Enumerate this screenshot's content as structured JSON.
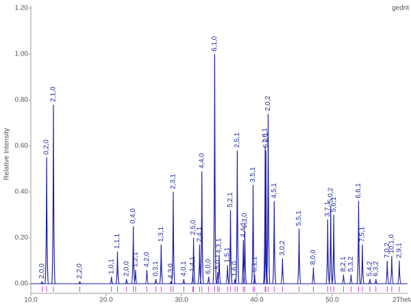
{
  "chart_data": {
    "type": "peaks",
    "subtitle": "gedrit",
    "y_label": "Relative Intensity",
    "x_label": "2Theta",
    "color": "#1a1aa8",
    "tick_color": "#d040d0",
    "xlim": [
      10,
      60
    ],
    "ylim": [
      0,
      1.2
    ],
    "xticks": [
      {
        "value": 10,
        "label": "10.0"
      },
      {
        "value": 20,
        "label": "20.0"
      },
      {
        "value": 30,
        "label": "30.0"
      },
      {
        "value": 40,
        "label": "40.0"
      },
      {
        "value": 50,
        "label": "50.0"
      }
    ],
    "yticks": [
      {
        "value": 0,
        "label": "0.00"
      },
      {
        "value": 0.2,
        "label": "0.20"
      },
      {
        "value": 0.4,
        "label": "0.40"
      },
      {
        "value": 0.6,
        "label": "0.60"
      },
      {
        "value": 0.8,
        "label": "0.80"
      },
      {
        "value": 1,
        "label": "1.00"
      },
      {
        "value": 1.2,
        "label": "1.20"
      }
    ],
    "x": [
      11.5,
      12.1,
      13.0,
      16.5,
      20.7,
      21.5,
      22.7,
      23.6,
      23.9,
      25.4,
      26.6,
      27.3,
      28.6,
      28.9,
      30.3,
      31.5,
      31.6,
      32.4,
      32.7,
      33.6,
      34.4,
      34.8,
      35.0,
      36.1,
      36.5,
      37.1,
      37.4,
      38.2,
      38.4,
      39.5,
      39.7,
      41.1,
      41.2,
      41.5,
      42.3,
      43.4,
      45.6,
      47.5,
      49.4,
      49.8,
      50.2,
      51.5,
      52.5,
      53.5,
      54.0,
      55.0,
      55.8,
      57.3,
      57.9,
      58.9
    ],
    "values": [
      0.01,
      0.55,
      0.78,
      0.01,
      0.03,
      0.14,
      0.02,
      0.25,
      0.06,
      0.06,
      0.02,
      0.17,
      0.01,
      0.4,
      0.02,
      0.04,
      0.2,
      0.17,
      0.49,
      0.03,
      1.0,
      0.05,
      0.12,
      0.08,
      0.32,
      0.02,
      0.58,
      0.19,
      0.23,
      0.43,
      0.04,
      0.6,
      0.58,
      0.74,
      0.36,
      0.11,
      0.24,
      0.07,
      0.28,
      0.34,
      0.3,
      0.04,
      0.04,
      0.36,
      0.17,
      0.02,
      0.02,
      0.1,
      0.12,
      0.1
    ],
    "labels": [
      "2,0,0",
      "0,2,0",
      "2,1,0",
      "2,2,0",
      "1,0,1",
      "1,1,1",
      "2,0,0",
      "0,4,0",
      "1,2,1",
      "4,2,0",
      "0,3,1",
      "1,3,1",
      "4,3,0",
      "2,3,1",
      "4,0,1",
      "1,4,1",
      "2,5,0",
      "2,4,1",
      "4,4,0",
      "6,0,0",
      "6,1,0",
      "5,0,1",
      "4,3,1",
      "1,5,1",
      "5,2,1",
      "1,6,0",
      "2,5,1",
      "4,4,1",
      "6,3,0",
      "3,5,1",
      "6,1,1",
      "1,6,1",
      "6,2,1",
      "2,0,2",
      "4,5,1",
      "3,0,2",
      "5,5,1",
      "8,0,0",
      "3,7,1",
      "5,0,2",
      "5,6,1",
      "8,2,1",
      "5,3,2",
      "6,6,1",
      "7,5,1",
      "5,4,2",
      "6,3,2",
      "7,0,2",
      "10,1,0",
      "2,9,1"
    ]
  }
}
